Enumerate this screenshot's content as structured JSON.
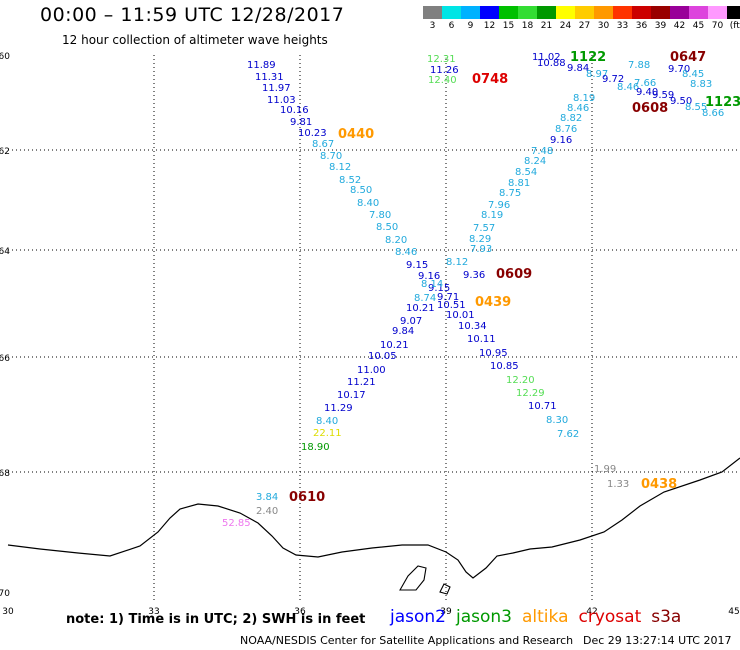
{
  "title": "00:00 – 11:59 UTC 12/28/2017",
  "subtitle": "12 hour collection of altimeter wave heights",
  "color_scale": {
    "labels": [
      "3",
      "6",
      "9",
      "12",
      "15",
      "18",
      "21",
      "24",
      "27",
      "30",
      "33",
      "36",
      "39",
      "42",
      "45",
      "70",
      "(ft)"
    ],
    "colors": [
      "#808080",
      "#00e5e5",
      "#00b2ff",
      "#0000ff",
      "#00c000",
      "#33dd33",
      "#009900",
      "#ffff00",
      "#ffcc00",
      "#ff9900",
      "#ff3300",
      "#cc0000",
      "#990000",
      "#990099",
      "#dd44dd",
      "#ff99ff",
      "#000000"
    ]
  },
  "axes": {
    "lon_labels": [
      "30",
      "33",
      "36",
      "39",
      "42",
      "45"
    ],
    "lat_labels": [
      "-60",
      "-62",
      "-64",
      "-66",
      "-68",
      "-70"
    ]
  },
  "track_a": [
    {
      "v": "11.89",
      "c": "#0000cc"
    },
    {
      "v": "11.31",
      "c": "#0000cc"
    },
    {
      "v": "11.97",
      "c": "#0000cc"
    },
    {
      "v": "11.03",
      "c": "#0000cc"
    },
    {
      "v": "10.16",
      "c": "#0000cc"
    },
    {
      "v": "9.81",
      "c": "#0000cc"
    },
    {
      "v": "10.23",
      "c": "#0000cc"
    },
    {
      "v": "8.67",
      "c": "#22aadd"
    },
    {
      "v": "8.70",
      "c": "#22aadd"
    },
    {
      "v": "8.12",
      "c": "#22aadd"
    },
    {
      "v": "8.52",
      "c": "#22aadd"
    },
    {
      "v": "8.50",
      "c": "#22aadd"
    },
    {
      "v": "8.40",
      "c": "#22aadd"
    },
    {
      "v": "7.80",
      "c": "#22aadd"
    },
    {
      "v": "8.50",
      "c": "#22aadd"
    },
    {
      "v": "8.20",
      "c": "#22aadd"
    },
    {
      "v": "8.46",
      "c": "#22aadd"
    },
    {
      "v": "9.15",
      "c": "#0000cc"
    },
    {
      "v": "9.16",
      "c": "#0000cc"
    },
    {
      "v": "9.15",
      "c": "#0000cc"
    },
    {
      "v": "9.71",
      "c": "#0000cc"
    },
    {
      "v": "10.51",
      "c": "#0000cc"
    },
    {
      "v": "10.01",
      "c": "#0000cc"
    },
    {
      "v": "10.34",
      "c": "#0000cc"
    },
    {
      "v": "10.11",
      "c": "#0000cc"
    },
    {
      "v": "10.95",
      "c": "#0000cc"
    },
    {
      "v": "10.85",
      "c": "#0000cc"
    },
    {
      "v": "12.20",
      "c": "#55dd55"
    },
    {
      "v": "12.29",
      "c": "#55dd55"
    },
    {
      "v": "10.71",
      "c": "#0000cc"
    },
    {
      "v": "8.30",
      "c": "#22aadd"
    },
    {
      "v": "7.62",
      "c": "#22aadd"
    }
  ],
  "track_b": [
    {
      "v": "18.90",
      "c": "#009900"
    },
    {
      "v": "22.11",
      "c": "#dddd00"
    },
    {
      "v": "8.40",
      "c": "#22aadd"
    },
    {
      "v": "11.29",
      "c": "#0000cc"
    },
    {
      "v": "10.17",
      "c": "#0000cc"
    },
    {
      "v": "11.21",
      "c": "#0000cc"
    },
    {
      "v": "11.00",
      "c": "#0000cc"
    },
    {
      "v": "10.05",
      "c": "#0000cc"
    },
    {
      "v": "10.21",
      "c": "#0000cc"
    },
    {
      "v": "9.84",
      "c": "#0000cc"
    },
    {
      "v": "9.07",
      "c": "#0000cc"
    },
    {
      "v": "10.21",
      "c": "#0000cc"
    },
    {
      "v": "8.74",
      "c": "#22aadd"
    },
    {
      "v": "8.14",
      "c": "#22aadd"
    },
    {
      "v": "9.36",
      "c": "#0000cc"
    },
    {
      "v": "8.12",
      "c": "#22aadd"
    },
    {
      "v": "7.93",
      "c": "#22aadd"
    },
    {
      "v": "8.29",
      "c": "#22aadd"
    },
    {
      "v": "7.57",
      "c": "#22aadd"
    },
    {
      "v": "8.19",
      "c": "#22aadd"
    },
    {
      "v": "7.96",
      "c": "#22aadd"
    },
    {
      "v": "8.75",
      "c": "#22aadd"
    },
    {
      "v": "8.81",
      "c": "#22aadd"
    },
    {
      "v": "8.54",
      "c": "#22aadd"
    },
    {
      "v": "8.24",
      "c": "#22aadd"
    },
    {
      "v": "7.48",
      "c": "#22aadd"
    },
    {
      "v": "9.16",
      "c": "#0000cc"
    },
    {
      "v": "8.76",
      "c": "#22aadd"
    },
    {
      "v": "8.82",
      "c": "#22aadd"
    },
    {
      "v": "8.46",
      "c": "#22aadd"
    },
    {
      "v": "8.19",
      "c": "#22aadd"
    }
  ],
  "extra_labels": [
    {
      "v": "12.31",
      "c": "#55dd55"
    },
    {
      "v": "11.26",
      "c": "#0000cc"
    },
    {
      "v": "12.40",
      "c": "#55dd55"
    },
    {
      "v": "11.02",
      "c": "#0000cc"
    },
    {
      "v": "10.88",
      "c": "#0000cc"
    },
    {
      "v": "9.84",
      "c": "#0000cc"
    },
    {
      "v": "8.97",
      "c": "#22aadd"
    },
    {
      "v": "9.72",
      "c": "#0000cc"
    },
    {
      "v": "7.88",
      "c": "#22aadd"
    },
    {
      "v": "7.66",
      "c": "#22aadd"
    },
    {
      "v": "8.46",
      "c": "#22aadd"
    },
    {
      "v": "9.40",
      "c": "#0000cc"
    },
    {
      "v": "9.59",
      "c": "#0000cc"
    },
    {
      "v": "9.50",
      "c": "#0000cc"
    },
    {
      "v": "8.55",
      "c": "#22aadd"
    },
    {
      "v": "8.66",
      "c": "#22aadd"
    },
    {
      "v": "9.70",
      "c": "#0000cc"
    },
    {
      "v": "8.45",
      "c": "#22aadd"
    },
    {
      "v": "8.83",
      "c": "#22aadd"
    },
    {
      "v": "1.99",
      "c": "#888888"
    },
    {
      "v": "1.33",
      "c": "#888888"
    },
    {
      "v": "3.84",
      "c": "#22aadd"
    },
    {
      "v": "2.40",
      "c": "#888888"
    },
    {
      "v": "52.85",
      "c": "#ee77ee"
    }
  ],
  "time_labels": [
    {
      "v": "0440",
      "c": "#ff9900"
    },
    {
      "v": "0748",
      "c": "#dd0000"
    },
    {
      "v": "1122",
      "c": "#009900"
    },
    {
      "v": "0608",
      "c": "#880000"
    },
    {
      "v": "0647",
      "c": "#880000"
    },
    {
      "v": "1123",
      "c": "#009900"
    },
    {
      "v": "0609",
      "c": "#880000"
    },
    {
      "v": "0439",
      "c": "#ff9900"
    },
    {
      "v": "0438",
      "c": "#ff9900"
    },
    {
      "v": "0610",
      "c": "#880000"
    }
  ],
  "note": "note: 1) Time is in UTC; 2) SWH is in feet",
  "satellites": [
    {
      "name": "jason2",
      "c": "#0000ff"
    },
    {
      "name": "jason3",
      "c": "#009900"
    },
    {
      "name": "altika",
      "c": "#ff9900"
    },
    {
      "name": "cryosat",
      "c": "#dd0000"
    },
    {
      "name": "s3a",
      "c": "#880000"
    }
  ],
  "credit": "NOAA/NESDIS Center for Satellite Applications and Research",
  "timestamp": "Dec 29 13:27:14 UTC 2017"
}
